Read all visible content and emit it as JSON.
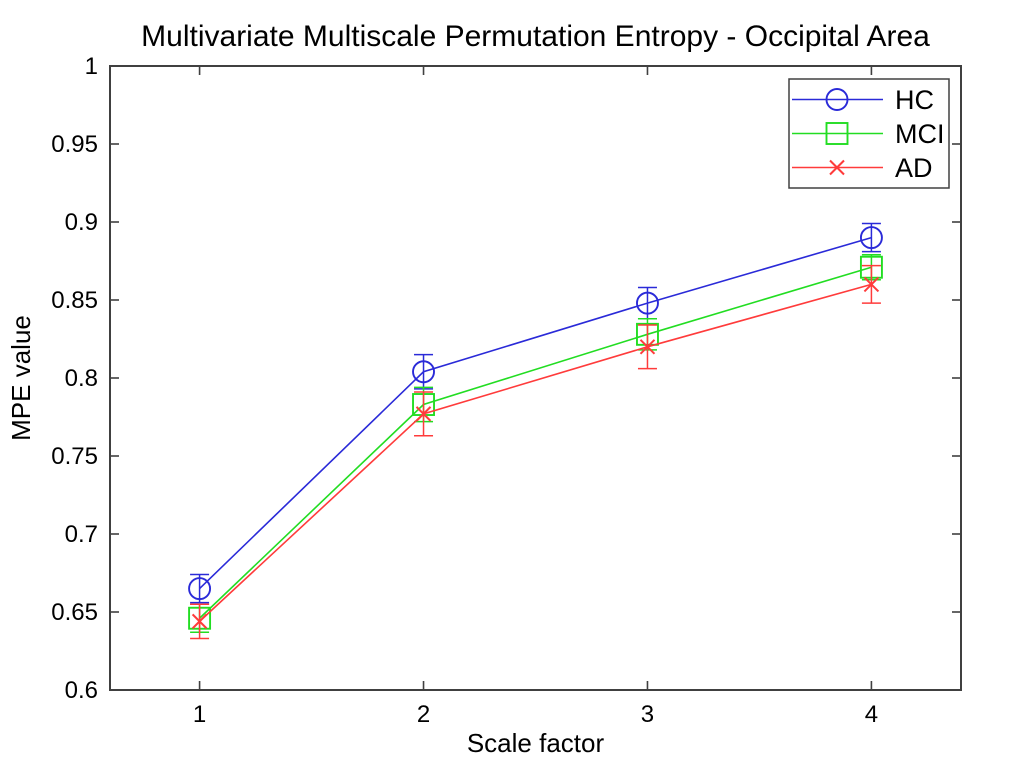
{
  "figure": {
    "background": "#ffffff",
    "axis_color": "#404040"
  },
  "chart_data": {
    "type": "line",
    "title": "Multivariate Multiscale Permutation Entropy - Occipital Area",
    "xlabel": "Scale factor",
    "ylabel": "MPE value",
    "grid": false,
    "error_bars": true,
    "legend_position": "top-right",
    "xlim": [
      0.6,
      4.4
    ],
    "ylim": [
      0.6,
      1.0
    ],
    "x": [
      1,
      2,
      3,
      4
    ],
    "xticks": [
      1,
      2,
      3,
      4
    ],
    "xticklabels": [
      "1",
      "2",
      "3",
      "4"
    ],
    "yticks": [
      0.6,
      0.65,
      0.7,
      0.75,
      0.8,
      0.85,
      0.9,
      0.95,
      1.0
    ],
    "yticklabels": [
      "0.6",
      "0.65",
      "0.7",
      "0.75",
      "0.8",
      "0.85",
      "0.9",
      "0.95",
      "1"
    ],
    "series": [
      {
        "name": "HC",
        "color": "#2a2ad8",
        "marker": "circle",
        "values": [
          0.665,
          0.804,
          0.848,
          0.89
        ],
        "errors": [
          0.009,
          0.011,
          0.01,
          0.009
        ]
      },
      {
        "name": "MCI",
        "color": "#22dd22",
        "marker": "square",
        "values": [
          0.646,
          0.783,
          0.828,
          0.871
        ],
        "errors": [
          0.009,
          0.011,
          0.01,
          0.008
        ]
      },
      {
        "name": "AD",
        "color": "#ff3b3b",
        "marker": "x",
        "values": [
          0.644,
          0.777,
          0.82,
          0.86
        ],
        "errors": [
          0.011,
          0.014,
          0.014,
          0.012
        ]
      }
    ]
  }
}
